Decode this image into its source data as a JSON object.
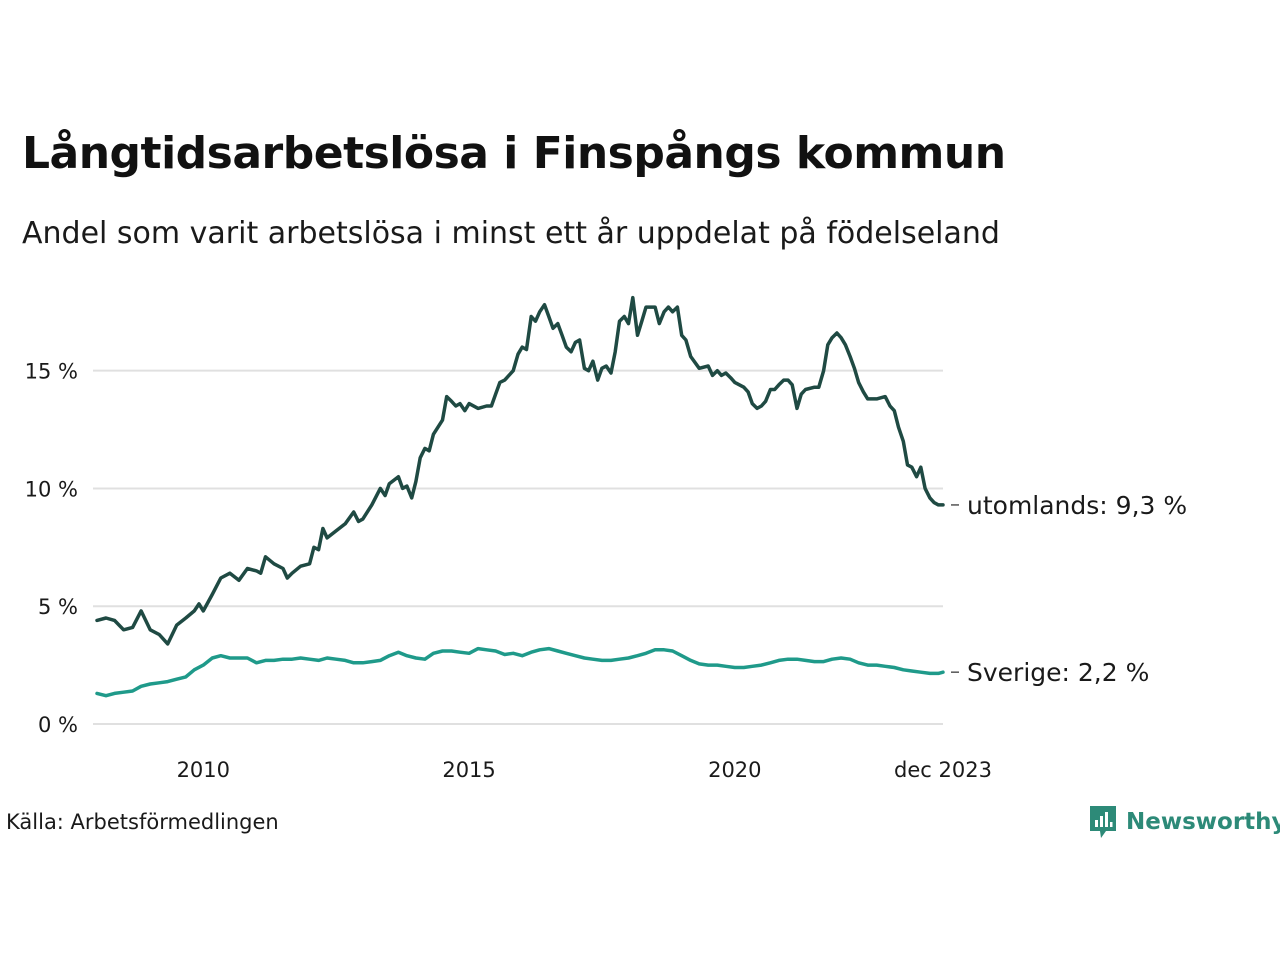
{
  "title": "Långtidsarbetslösa i Finspångs kommun",
  "subtitle": "Andel som varit arbetslösa i minst ett år uppdelat på födelseland",
  "source": "Källa: Arbetsförmedlingen",
  "brand": {
    "name": "Newsworthy",
    "icon": "newsworthy-logo-icon",
    "color": "#2d8a78"
  },
  "colors": {
    "utomlands": "#1f4a43",
    "sverige": "#1f9a8a",
    "grid": "#e0e0e0",
    "text": "#1a1a1a"
  },
  "chart_data": {
    "type": "line",
    "title": "Långtidsarbetslösa i Finspångs kommun",
    "subtitle": "Andel som varit arbetslösa i minst ett år uppdelat på födelseland",
    "xlabel": "",
    "ylabel": "",
    "xlim": [
      2008.0,
      2023.917
    ],
    "ylim": [
      0,
      18
    ],
    "grid": true,
    "x_ticks": [
      {
        "value": 2010.0,
        "label": "2010"
      },
      {
        "value": 2015.0,
        "label": "2015"
      },
      {
        "value": 2020.0,
        "label": "2020"
      },
      {
        "value": 2023.917,
        "label": "dec 2023"
      }
    ],
    "y_ticks": [
      {
        "value": 0,
        "label": "0 %"
      },
      {
        "value": 5,
        "label": "5 %"
      },
      {
        "value": 10,
        "label": "10 %"
      },
      {
        "value": 15,
        "label": "15 %"
      }
    ],
    "series": [
      {
        "name": "utomlands",
        "end_label": "utomlands: 9,3 %",
        "color": "#1f4a43",
        "points": [
          [
            2008.0,
            4.4
          ],
          [
            2008.17,
            4.5
          ],
          [
            2008.33,
            4.4
          ],
          [
            2008.5,
            4.0
          ],
          [
            2008.67,
            4.1
          ],
          [
            2008.83,
            4.8
          ],
          [
            2009.0,
            4.0
          ],
          [
            2009.17,
            3.8
          ],
          [
            2009.33,
            3.4
          ],
          [
            2009.5,
            4.2
          ],
          [
            2009.67,
            4.5
          ],
          [
            2009.83,
            4.8
          ],
          [
            2009.92,
            5.1
          ],
          [
            2010.0,
            4.8
          ],
          [
            2010.17,
            5.5
          ],
          [
            2010.33,
            6.2
          ],
          [
            2010.5,
            6.4
          ],
          [
            2010.67,
            6.1
          ],
          [
            2010.83,
            6.6
          ],
          [
            2011.0,
            6.5
          ],
          [
            2011.08,
            6.4
          ],
          [
            2011.17,
            7.1
          ],
          [
            2011.33,
            6.8
          ],
          [
            2011.5,
            6.6
          ],
          [
            2011.58,
            6.2
          ],
          [
            2011.67,
            6.4
          ],
          [
            2011.83,
            6.7
          ],
          [
            2012.0,
            6.8
          ],
          [
            2012.08,
            7.5
          ],
          [
            2012.17,
            7.4
          ],
          [
            2012.25,
            8.3
          ],
          [
            2012.33,
            7.9
          ],
          [
            2012.5,
            8.2
          ],
          [
            2012.67,
            8.5
          ],
          [
            2012.83,
            9.0
          ],
          [
            2012.92,
            8.6
          ],
          [
            2013.0,
            8.7
          ],
          [
            2013.17,
            9.3
          ],
          [
            2013.33,
            10.0
          ],
          [
            2013.42,
            9.7
          ],
          [
            2013.5,
            10.2
          ],
          [
            2013.67,
            10.5
          ],
          [
            2013.75,
            10.0
          ],
          [
            2013.83,
            10.1
          ],
          [
            2013.92,
            9.6
          ],
          [
            2014.0,
            10.3
          ],
          [
            2014.08,
            11.3
          ],
          [
            2014.17,
            11.7
          ],
          [
            2014.25,
            11.6
          ],
          [
            2014.33,
            12.3
          ],
          [
            2014.5,
            12.9
          ],
          [
            2014.58,
            13.9
          ],
          [
            2014.67,
            13.7
          ],
          [
            2014.75,
            13.5
          ],
          [
            2014.83,
            13.6
          ],
          [
            2014.92,
            13.3
          ],
          [
            2015.0,
            13.6
          ],
          [
            2015.17,
            13.4
          ],
          [
            2015.33,
            13.5
          ],
          [
            2015.42,
            13.5
          ],
          [
            2015.5,
            14.0
          ],
          [
            2015.58,
            14.5
          ],
          [
            2015.67,
            14.6
          ],
          [
            2015.83,
            15.0
          ],
          [
            2015.92,
            15.7
          ],
          [
            2016.0,
            16.0
          ],
          [
            2016.08,
            15.9
          ],
          [
            2016.17,
            17.3
          ],
          [
            2016.25,
            17.1
          ],
          [
            2016.33,
            17.5
          ],
          [
            2016.42,
            17.8
          ],
          [
            2016.5,
            17.3
          ],
          [
            2016.58,
            16.8
          ],
          [
            2016.67,
            17.0
          ],
          [
            2016.75,
            16.5
          ],
          [
            2016.83,
            16.0
          ],
          [
            2016.92,
            15.8
          ],
          [
            2017.0,
            16.2
          ],
          [
            2017.08,
            16.3
          ],
          [
            2017.17,
            15.1
          ],
          [
            2017.25,
            15.0
          ],
          [
            2017.33,
            15.4
          ],
          [
            2017.42,
            14.6
          ],
          [
            2017.5,
            15.1
          ],
          [
            2017.58,
            15.2
          ],
          [
            2017.67,
            14.9
          ],
          [
            2017.75,
            15.8
          ],
          [
            2017.83,
            17.1
          ],
          [
            2017.92,
            17.3
          ],
          [
            2018.0,
            17.0
          ],
          [
            2018.08,
            18.1
          ],
          [
            2018.17,
            16.5
          ],
          [
            2018.25,
            17.1
          ],
          [
            2018.33,
            17.7
          ],
          [
            2018.5,
            17.7
          ],
          [
            2018.58,
            17.0
          ],
          [
            2018.67,
            17.5
          ],
          [
            2018.75,
            17.7
          ],
          [
            2018.83,
            17.5
          ],
          [
            2018.92,
            17.7
          ],
          [
            2019.0,
            16.5
          ],
          [
            2019.08,
            16.3
          ],
          [
            2019.17,
            15.6
          ],
          [
            2019.33,
            15.1
          ],
          [
            2019.5,
            15.2
          ],
          [
            2019.58,
            14.8
          ],
          [
            2019.67,
            15.0
          ],
          [
            2019.75,
            14.8
          ],
          [
            2019.83,
            14.9
          ],
          [
            2019.92,
            14.7
          ],
          [
            2020.0,
            14.5
          ],
          [
            2020.17,
            14.3
          ],
          [
            2020.25,
            14.1
          ],
          [
            2020.33,
            13.6
          ],
          [
            2020.42,
            13.4
          ],
          [
            2020.5,
            13.5
          ],
          [
            2020.58,
            13.7
          ],
          [
            2020.67,
            14.2
          ],
          [
            2020.75,
            14.2
          ],
          [
            2020.83,
            14.4
          ],
          [
            2020.92,
            14.6
          ],
          [
            2021.0,
            14.6
          ],
          [
            2021.08,
            14.4
          ],
          [
            2021.17,
            13.4
          ],
          [
            2021.25,
            14.0
          ],
          [
            2021.33,
            14.2
          ],
          [
            2021.5,
            14.3
          ],
          [
            2021.58,
            14.3
          ],
          [
            2021.67,
            15.0
          ],
          [
            2021.75,
            16.1
          ],
          [
            2021.83,
            16.4
          ],
          [
            2021.92,
            16.6
          ],
          [
            2022.0,
            16.4
          ],
          [
            2022.08,
            16.1
          ],
          [
            2022.17,
            15.6
          ],
          [
            2022.25,
            15.1
          ],
          [
            2022.33,
            14.5
          ],
          [
            2022.42,
            14.1
          ],
          [
            2022.5,
            13.8
          ],
          [
            2022.58,
            13.8
          ],
          [
            2022.67,
            13.8
          ],
          [
            2022.83,
            13.9
          ],
          [
            2022.92,
            13.5
          ],
          [
            2023.0,
            13.3
          ],
          [
            2023.08,
            12.6
          ],
          [
            2023.17,
            12.0
          ],
          [
            2023.25,
            11.0
          ],
          [
            2023.33,
            10.9
          ],
          [
            2023.42,
            10.5
          ],
          [
            2023.5,
            10.9
          ],
          [
            2023.58,
            10.0
          ],
          [
            2023.67,
            9.6
          ],
          [
            2023.75,
            9.4
          ],
          [
            2023.83,
            9.3
          ],
          [
            2023.917,
            9.3
          ]
        ]
      },
      {
        "name": "Sverige",
        "end_label": "Sverige: 2,2 %",
        "color": "#1f9a8a",
        "points": [
          [
            2008.0,
            1.3
          ],
          [
            2008.17,
            1.2
          ],
          [
            2008.33,
            1.3
          ],
          [
            2008.5,
            1.35
          ],
          [
            2008.67,
            1.4
          ],
          [
            2008.83,
            1.6
          ],
          [
            2009.0,
            1.7
          ],
          [
            2009.17,
            1.75
          ],
          [
            2009.33,
            1.8
          ],
          [
            2009.5,
            1.9
          ],
          [
            2009.67,
            2.0
          ],
          [
            2009.83,
            2.3
          ],
          [
            2010.0,
            2.5
          ],
          [
            2010.17,
            2.8
          ],
          [
            2010.33,
            2.9
          ],
          [
            2010.5,
            2.8
          ],
          [
            2010.67,
            2.8
          ],
          [
            2010.83,
            2.8
          ],
          [
            2011.0,
            2.6
          ],
          [
            2011.17,
            2.7
          ],
          [
            2011.33,
            2.7
          ],
          [
            2011.5,
            2.75
          ],
          [
            2011.67,
            2.75
          ],
          [
            2011.83,
            2.8
          ],
          [
            2012.0,
            2.75
          ],
          [
            2012.17,
            2.7
          ],
          [
            2012.33,
            2.8
          ],
          [
            2012.5,
            2.75
          ],
          [
            2012.67,
            2.7
          ],
          [
            2012.83,
            2.6
          ],
          [
            2013.0,
            2.6
          ],
          [
            2013.17,
            2.65
          ],
          [
            2013.33,
            2.7
          ],
          [
            2013.5,
            2.9
          ],
          [
            2013.67,
            3.05
          ],
          [
            2013.83,
            2.9
          ],
          [
            2014.0,
            2.8
          ],
          [
            2014.17,
            2.75
          ],
          [
            2014.33,
            3.0
          ],
          [
            2014.5,
            3.1
          ],
          [
            2014.67,
            3.1
          ],
          [
            2014.83,
            3.05
          ],
          [
            2015.0,
            3.0
          ],
          [
            2015.17,
            3.2
          ],
          [
            2015.33,
            3.15
          ],
          [
            2015.5,
            3.1
          ],
          [
            2015.67,
            2.95
          ],
          [
            2015.83,
            3.0
          ],
          [
            2016.0,
            2.9
          ],
          [
            2016.17,
            3.05
          ],
          [
            2016.33,
            3.15
          ],
          [
            2016.5,
            3.2
          ],
          [
            2016.67,
            3.1
          ],
          [
            2016.83,
            3.0
          ],
          [
            2017.0,
            2.9
          ],
          [
            2017.17,
            2.8
          ],
          [
            2017.33,
            2.75
          ],
          [
            2017.5,
            2.7
          ],
          [
            2017.67,
            2.7
          ],
          [
            2017.83,
            2.75
          ],
          [
            2018.0,
            2.8
          ],
          [
            2018.17,
            2.9
          ],
          [
            2018.33,
            3.0
          ],
          [
            2018.5,
            3.15
          ],
          [
            2018.67,
            3.15
          ],
          [
            2018.83,
            3.1
          ],
          [
            2019.0,
            2.9
          ],
          [
            2019.17,
            2.7
          ],
          [
            2019.33,
            2.55
          ],
          [
            2019.5,
            2.5
          ],
          [
            2019.67,
            2.5
          ],
          [
            2019.83,
            2.45
          ],
          [
            2020.0,
            2.4
          ],
          [
            2020.17,
            2.4
          ],
          [
            2020.33,
            2.45
          ],
          [
            2020.5,
            2.5
          ],
          [
            2020.67,
            2.6
          ],
          [
            2020.83,
            2.7
          ],
          [
            2021.0,
            2.75
          ],
          [
            2021.17,
            2.75
          ],
          [
            2021.33,
            2.7
          ],
          [
            2021.5,
            2.65
          ],
          [
            2021.67,
            2.65
          ],
          [
            2021.83,
            2.75
          ],
          [
            2022.0,
            2.8
          ],
          [
            2022.17,
            2.75
          ],
          [
            2022.33,
            2.6
          ],
          [
            2022.5,
            2.5
          ],
          [
            2022.67,
            2.5
          ],
          [
            2022.83,
            2.45
          ],
          [
            2023.0,
            2.4
          ],
          [
            2023.17,
            2.3
          ],
          [
            2023.33,
            2.25
          ],
          [
            2023.5,
            2.2
          ],
          [
            2023.67,
            2.15
          ],
          [
            2023.83,
            2.15
          ],
          [
            2023.917,
            2.2
          ]
        ]
      }
    ]
  }
}
